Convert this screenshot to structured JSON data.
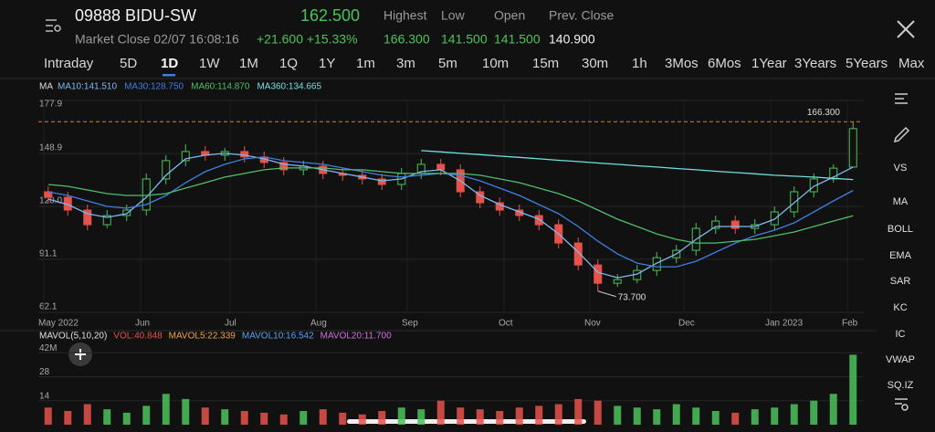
{
  "header": {
    "symbol": "09888 BIDU-SW",
    "price": "162.500",
    "status": "Market Close 02/07 16:08:16",
    "change": "+21.600 +15.33%",
    "stats": [
      {
        "label": "Highest",
        "value": "166.300"
      },
      {
        "label": "Low",
        "value": "141.500"
      },
      {
        "label": "Open",
        "value": "141.500"
      },
      {
        "label": "Prev. Close",
        "value": "140.900"
      }
    ]
  },
  "tabs": [
    "Intraday",
    "5D",
    "1D",
    "1W",
    "1M",
    "1Q",
    "1Y",
    "1m",
    "3m",
    "5m",
    "10m",
    "15m",
    "30m",
    "1h",
    "3Mos",
    "6Mos",
    "1Year",
    "3Years",
    "5Years",
    "Max"
  ],
  "toolbar": [
    "VS",
    "MA",
    "BOLL",
    "EMA",
    "SAR",
    "KC",
    "IC",
    "VWAP",
    "SQ.IZ"
  ],
  "chart_data": [
    {
      "type": "candlestick",
      "legend_title": "MA",
      "x_labels": [
        "May 2022",
        "Jun",
        "Jul",
        "Aug",
        "Sep",
        "Oct",
        "Nov",
        "Dec",
        "Jan 2023",
        "Feb"
      ],
      "ylim": [
        62.1,
        177.9
      ],
      "yticks": [
        177.9,
        148.9,
        {
          "value": 120,
          "label": "120.0"
        },
        91.1,
        62.1
      ],
      "up_color": "#4cc35a",
      "down_color": "#e5534b",
      "open": [
        128,
        125,
        118,
        110,
        115,
        118,
        135,
        145,
        150,
        148,
        150,
        147,
        144,
        140,
        142,
        138,
        137,
        135,
        132,
        138,
        143,
        140,
        128,
        122,
        118,
        115,
        110,
        100,
        88,
        78,
        80,
        85,
        92,
        96,
        108,
        112,
        108,
        110,
        117,
        128,
        135,
        141.5
      ],
      "high": [
        131,
        128,
        121,
        118,
        121,
        138,
        148,
        154,
        153,
        152,
        153,
        150,
        147,
        145,
        145,
        141,
        140,
        138,
        141,
        146,
        146,
        143,
        131,
        125,
        121,
        118,
        113,
        103,
        91,
        83,
        88,
        95,
        99,
        111,
        115,
        115,
        113,
        120,
        131,
        138,
        143,
        166.3
      ],
      "low": [
        122,
        115,
        107,
        108,
        112,
        115,
        132,
        142,
        145,
        145,
        144,
        141,
        137,
        137,
        135,
        134,
        132,
        129,
        129,
        135,
        137,
        125,
        119,
        115,
        112,
        107,
        97,
        85,
        73.7,
        76,
        78,
        82,
        89,
        93,
        105,
        105,
        105,
        107,
        114,
        125,
        133,
        141.5
      ],
      "close": [
        125,
        118,
        110,
        115,
        118,
        135,
        145,
        150,
        148,
        150,
        147,
        144,
        140,
        142,
        138,
        137,
        135,
        132,
        138,
        143,
        140,
        128,
        122,
        118,
        115,
        110,
        100,
        88,
        78,
        80,
        85,
        92,
        96,
        108,
        112,
        108,
        110,
        117,
        128,
        135,
        140.9,
        162.5
      ],
      "high_annotation": {
        "value": 166.3,
        "label": "166.300"
      },
      "low_annotation": {
        "value": 73.7,
        "label": "73.700"
      },
      "series": [
        {
          "name": "MA10:141.510",
          "color": "#7fb8f0",
          "values": [
            124,
            121,
            116,
            114,
            116,
            125,
            137,
            146,
            148,
            149,
            148,
            146,
            143,
            142,
            140,
            138,
            136,
            134,
            135,
            139,
            140,
            134,
            126,
            121,
            117,
            113,
            105,
            95,
            84,
            81,
            83,
            89,
            94,
            102,
            109,
            109,
            109,
            113,
            122,
            131,
            136,
            141.51
          ]
        },
        {
          "name": "MA30:128.750",
          "color": "#3f7fe0",
          "values": [
            128,
            126,
            123,
            120,
            119,
            121,
            126,
            133,
            139,
            143,
            146,
            147,
            145,
            144,
            143,
            141,
            139,
            137,
            136,
            137,
            138,
            137,
            134,
            130,
            126,
            121,
            116,
            109,
            101,
            94,
            89,
            87,
            87,
            90,
            95,
            100,
            104,
            107,
            111,
            117,
            123,
            128.75
          ]
        },
        {
          "name": "MA60:114.870",
          "color": "#4fbf6a",
          "values": [
            132,
            131,
            129,
            127,
            126,
            126,
            127,
            130,
            133,
            136,
            138,
            140,
            141,
            141,
            141,
            140,
            140,
            139,
            138,
            138,
            138,
            138,
            137,
            135,
            133,
            130,
            127,
            123,
            118,
            113,
            109,
            105,
            102,
            100,
            100,
            101,
            102,
            104,
            106,
            109,
            112,
            114.87
          ]
        },
        {
          "name": "MA360:134.665",
          "color": "#6fe0e0",
          "values": [
            null,
            null,
            null,
            null,
            null,
            null,
            null,
            null,
            null,
            null,
            null,
            null,
            null,
            null,
            null,
            null,
            null,
            null,
            null,
            150.5,
            149.8,
            149,
            148.3,
            147.5,
            146.8,
            146,
            145.2,
            144.5,
            143.7,
            143,
            142.2,
            141.5,
            140.7,
            140,
            139.2,
            138.5,
            137.8,
            137,
            136.5,
            136,
            135.3,
            134.665
          ]
        }
      ]
    },
    {
      "type": "bar",
      "legend": [
        {
          "name": "MAVOL(5,10,20)",
          "color": "#e0e0e0"
        },
        {
          "name": "VOL:40.848",
          "color": "#e5534b"
        },
        {
          "name": "MAVOL5:22.339",
          "color": "#f0a040"
        },
        {
          "name": "MAVOL10:16.542",
          "color": "#5aa0f0"
        },
        {
          "name": "MAVOL20:11.700",
          "color": "#d070e0"
        }
      ],
      "ylim": [
        0,
        48
      ],
      "yticks": [
        14,
        28,
        {
          "value": 42,
          "label": "42M"
        }
      ],
      "values": [
        10,
        8,
        12,
        9,
        7,
        11,
        18,
        15,
        10,
        9,
        8,
        7,
        6,
        8,
        9,
        7,
        6,
        8,
        10,
        9,
        14,
        10,
        9,
        8,
        10,
        11,
        12,
        15,
        14,
        11,
        10,
        9,
        12,
        10,
        8,
        7,
        9,
        10,
        12,
        14,
        18,
        40.848
      ]
    }
  ]
}
